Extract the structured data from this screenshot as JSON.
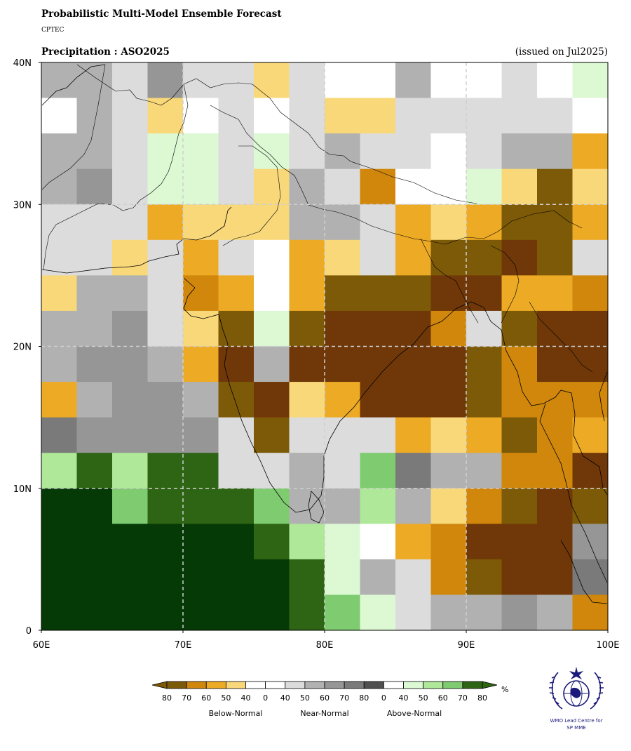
{
  "header": {
    "title": "Probabilistic Multi-Model Ensemble Forecast",
    "agency": "CPTEC",
    "subtitle": "Precipitation : ASO2025",
    "issued": "(issued on Jul2025)"
  },
  "map": {
    "type": "heatmap",
    "lon_range": [
      60,
      100
    ],
    "lat_range": [
      0,
      40
    ],
    "cell_size_deg": 2.5,
    "x_ticks": [
      "60E",
      "70E",
      "80E",
      "90E",
      "100E"
    ],
    "y_ticks": [
      "0",
      "10N",
      "20N",
      "30N",
      "40N"
    ],
    "gridlines": [
      10,
      20,
      30,
      40
    ],
    "grid": true,
    "category_colors": {
      "B80": "#7d5a07",
      "B70": "#d0870c",
      "B60": "#edaa25",
      "B50": "#f9d87a",
      "B40": "#f9d87a",
      "N40": "#dcdcdc",
      "N50": "#b1b1b1",
      "N60": "#969696",
      "N70": "#7a7a7a",
      "N80": "#505050",
      "A40": "#dcf9d4",
      "A50": "#aee898",
      "A60": "#7fcb70",
      "A70": "#2e6514",
      "A80": "#053a07",
      "B90": "#703808",
      "W": "#ffffff"
    },
    "rows_north_to_south": [
      [
        "N50",
        "N50",
        "N40",
        "N60",
        "N40",
        "N40",
        "B50",
        "N40",
        "W",
        "W",
        "N50",
        "W",
        "W",
        "N40",
        "W",
        "A40"
      ],
      [
        "W",
        "N50",
        "N40",
        "B50",
        "W",
        "N40",
        "W",
        "N40",
        "B50",
        "B50",
        "N40",
        "N40",
        "N40",
        "N40",
        "N40",
        "W"
      ],
      [
        "N50",
        "N50",
        "N40",
        "A40",
        "A40",
        "N40",
        "A40",
        "N40",
        "N50",
        "N40",
        "N40",
        "W",
        "N40",
        "N50",
        "N50",
        "B60"
      ],
      [
        "N50",
        "N60",
        "N40",
        "A40",
        "A40",
        "N40",
        "B50",
        "N50",
        "N40",
        "B70",
        "W",
        "W",
        "A40",
        "B50",
        "B80",
        "B50"
      ],
      [
        "N40",
        "N40",
        "N40",
        "B60",
        "B50",
        "B50",
        "B50",
        "N50",
        "N50",
        "N40",
        "B60",
        "B50",
        "B60",
        "B80",
        "B80",
        "B60"
      ],
      [
        "N40",
        "N40",
        "B50",
        "N40",
        "B60",
        "N40",
        "W",
        "B60",
        "B50",
        "N40",
        "B60",
        "B80",
        "B80",
        "B90",
        "B80",
        "N40"
      ],
      [
        "B50",
        "N50",
        "N50",
        "N40",
        "B70",
        "B60",
        "W",
        "B60",
        "B80",
        "B80",
        "B80",
        "B90",
        "B90",
        "B60",
        "B60",
        "B70"
      ],
      [
        "N50",
        "N50",
        "N60",
        "N40",
        "B50",
        "B80",
        "A40",
        "B80",
        "B90",
        "B90",
        "B90",
        "B70",
        "N40",
        "B80",
        "B90",
        "B90"
      ],
      [
        "N50",
        "N60",
        "N60",
        "N50",
        "B60",
        "B90",
        "N50",
        "B90",
        "B90",
        "B90",
        "B90",
        "B90",
        "B80",
        "B70",
        "B90",
        "B90"
      ],
      [
        "B60",
        "N50",
        "N60",
        "N60",
        "N50",
        "B80",
        "B90",
        "B50",
        "B60",
        "B90",
        "B90",
        "B90",
        "B80",
        "B70",
        "B70",
        "B70"
      ],
      [
        "N70",
        "N60",
        "N60",
        "N60",
        "N60",
        "N40",
        "B80",
        "N40",
        "N40",
        "N40",
        "B60",
        "B50",
        "B60",
        "B80",
        "B70",
        "B60"
      ],
      [
        "A50",
        "A70",
        "A50",
        "A70",
        "A70",
        "N40",
        "N40",
        "N50",
        "N40",
        "A60",
        "N70",
        "N50",
        "N50",
        "B70",
        "B70",
        "B90"
      ],
      [
        "A80",
        "A80",
        "A60",
        "A70",
        "A70",
        "A70",
        "A60",
        "N50",
        "N50",
        "A50",
        "N50",
        "B50",
        "B70",
        "B80",
        "B90",
        "B80"
      ],
      [
        "A80",
        "A80",
        "A80",
        "A80",
        "A80",
        "A80",
        "A70",
        "A50",
        "A40",
        "W",
        "B60",
        "B70",
        "B90",
        "B90",
        "B90",
        "N60"
      ],
      [
        "A80",
        "A80",
        "A80",
        "A80",
        "A80",
        "A80",
        "A80",
        "A70",
        "A40",
        "N50",
        "N40",
        "B70",
        "B80",
        "B90",
        "B90",
        "N70"
      ],
      [
        "A80",
        "A80",
        "A80",
        "A80",
        "A80",
        "A80",
        "A80",
        "A70",
        "A60",
        "A40",
        "N40",
        "N50",
        "N50",
        "N60",
        "N50",
        "B70"
      ]
    ]
  },
  "legend": {
    "unit": "%",
    "colors": [
      "#7d5a07",
      "#d0870c",
      "#edaa25",
      "#f9d87a",
      "#ffffff",
      "#ffffff",
      "#dcdcdc",
      "#b1b1b1",
      "#969696",
      "#7a7a7a",
      "#505050",
      "#ffffff",
      "#dcf9d4",
      "#aee898",
      "#7fcb70",
      "#2e6514"
    ],
    "extend_low_color": "#7d5a07",
    "extend_high_color": "#2e6514",
    "tick_labels": [
      "80",
      "70",
      "60",
      "50",
      "40",
      "0",
      "40",
      "50",
      "60",
      "70",
      "80",
      "0",
      "40",
      "50",
      "60",
      "70",
      "80"
    ],
    "group_labels": [
      "Below-Normal",
      "Near-Normal",
      "Above-Normal"
    ]
  },
  "logo": {
    "caption": "WMO Lead Centre for SP MME",
    "caption_line1": "WMO Lead Centre for",
    "caption_line2": "SP MME"
  }
}
